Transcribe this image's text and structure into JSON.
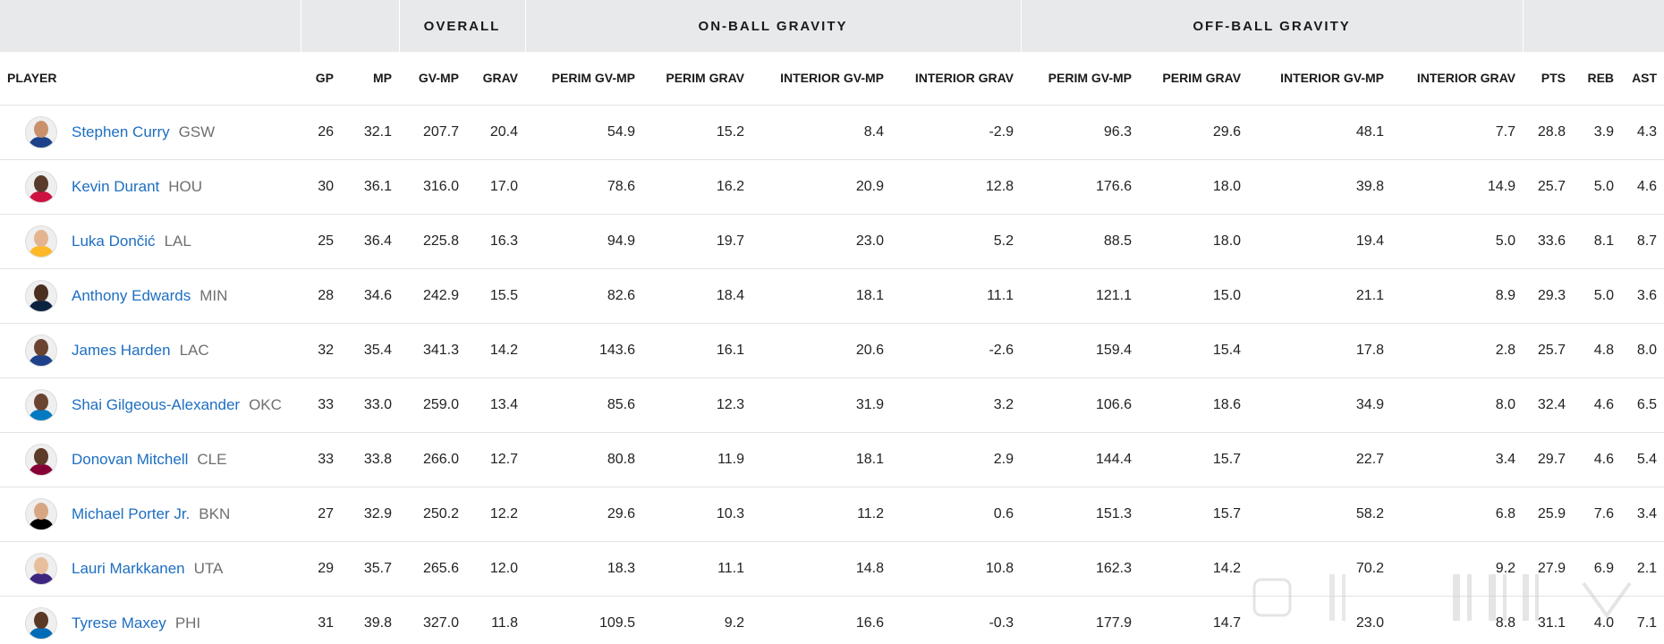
{
  "groups": {
    "overall": "OVERALL",
    "on_ball": "ON-BALL GRAVITY",
    "off_ball": "OFF-BALL GRAVITY"
  },
  "columns": {
    "player": "PLAYER",
    "gp": "GP",
    "mp": "MP",
    "gv_mp": "GV-MP",
    "grav": "GRAV",
    "on_perim_gv_mp": "PERIM GV-MP",
    "on_perim_grav": "PERIM GRAV",
    "on_int_gv_mp": "INTERIOR GV-MP",
    "on_int_grav": "INTERIOR GRAV",
    "off_perim_gv_mp": "PERIM GV-MP",
    "off_perim_grav": "PERIM GRAV",
    "off_int_gv_mp": "INTERIOR GV-MP",
    "off_int_grav": "INTERIOR GRAV",
    "pts": "PTS",
    "reb": "REB",
    "ast": "AST"
  },
  "colors": {
    "link": "#1d6ec1",
    "team": "#6f6f6f",
    "group_bg": "#e8e9eb"
  },
  "rows": [
    {
      "name": "Stephen Curry",
      "team": "GSW",
      "jersey": "#1d428a",
      "skin": "#c9916b",
      "v": [
        "26",
        "32.1",
        "207.7",
        "20.4",
        "54.9",
        "15.2",
        "8.4",
        "-2.9",
        "96.3",
        "29.6",
        "48.1",
        "7.7",
        "28.8",
        "3.9",
        "4.3"
      ]
    },
    {
      "name": "Kevin Durant",
      "team": "HOU",
      "jersey": "#ce1141",
      "skin": "#5a3a2a",
      "v": [
        "30",
        "36.1",
        "316.0",
        "17.0",
        "78.6",
        "16.2",
        "20.9",
        "12.8",
        "176.6",
        "18.0",
        "39.8",
        "14.9",
        "25.7",
        "5.0",
        "4.6"
      ]
    },
    {
      "name": "Luka Dončić",
      "team": "LAL",
      "jersey": "#fdb927",
      "skin": "#e3b48f",
      "v": [
        "25",
        "36.4",
        "225.8",
        "16.3",
        "94.9",
        "19.7",
        "23.0",
        "5.2",
        "88.5",
        "18.0",
        "19.4",
        "5.0",
        "33.6",
        "8.1",
        "8.7"
      ]
    },
    {
      "name": "Anthony Edwards",
      "team": "MIN",
      "jersey": "#0c2340",
      "skin": "#4a2e20",
      "v": [
        "28",
        "34.6",
        "242.9",
        "15.5",
        "82.6",
        "18.4",
        "18.1",
        "11.1",
        "121.1",
        "15.0",
        "21.1",
        "8.9",
        "29.3",
        "5.0",
        "3.6"
      ]
    },
    {
      "name": "James Harden",
      "team": "LAC",
      "jersey": "#1d428a",
      "skin": "#6a4430",
      "v": [
        "32",
        "35.4",
        "341.3",
        "14.2",
        "143.6",
        "16.1",
        "20.6",
        "-2.6",
        "159.4",
        "15.4",
        "17.8",
        "2.8",
        "25.7",
        "4.8",
        "8.0"
      ]
    },
    {
      "name": "Shai Gilgeous-Alexander",
      "team": "OKC",
      "jersey": "#007ac1",
      "skin": "#6b4431",
      "v": [
        "33",
        "33.0",
        "259.0",
        "13.4",
        "85.6",
        "12.3",
        "31.9",
        "3.2",
        "106.6",
        "18.6",
        "34.9",
        "8.0",
        "32.4",
        "4.6",
        "6.5"
      ]
    },
    {
      "name": "Donovan Mitchell",
      "team": "CLE",
      "jersey": "#860038",
      "skin": "#5d3b29",
      "v": [
        "33",
        "33.8",
        "266.0",
        "12.7",
        "80.8",
        "11.9",
        "18.1",
        "2.9",
        "144.4",
        "15.7",
        "22.7",
        "3.4",
        "29.7",
        "4.6",
        "5.4"
      ]
    },
    {
      "name": "Michael Porter Jr.",
      "team": "BKN",
      "jersey": "#000000",
      "skin": "#d7a784",
      "v": [
        "27",
        "32.9",
        "250.2",
        "12.2",
        "29.6",
        "10.3",
        "11.2",
        "0.6",
        "151.3",
        "15.7",
        "58.2",
        "6.8",
        "25.9",
        "7.6",
        "3.4"
      ]
    },
    {
      "name": "Lauri Markkanen",
      "team": "UTA",
      "jersey": "#3e2680",
      "skin": "#e8bf9c",
      "v": [
        "29",
        "35.7",
        "265.6",
        "12.0",
        "18.3",
        "11.1",
        "14.8",
        "10.8",
        "162.3",
        "14.2",
        "70.2",
        "9.2",
        "27.9",
        "6.9",
        "2.1"
      ]
    },
    {
      "name": "Tyrese Maxey",
      "team": "PHI",
      "jersey": "#006bb6",
      "skin": "#5a3826",
      "v": [
        "31",
        "39.8",
        "327.0",
        "11.8",
        "109.5",
        "9.2",
        "16.6",
        "-0.3",
        "177.9",
        "14.7",
        "23.0",
        "8.8",
        "31.1",
        "4.0",
        "7.1"
      ]
    }
  ]
}
